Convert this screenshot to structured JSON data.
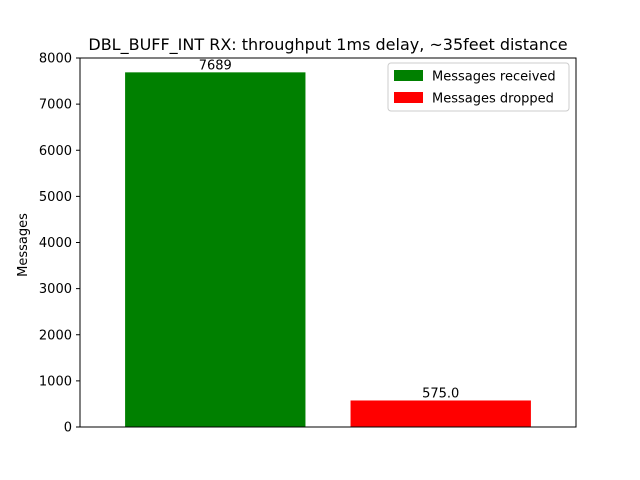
{
  "chart_data": {
    "type": "bar",
    "title": "DBL_BUFF_INT RX: throughput 1ms delay, ~35feet distance",
    "xlabel": "",
    "ylabel": "Messages",
    "ylim": [
      0,
      8000
    ],
    "yticks": [
      0,
      1000,
      2000,
      3000,
      4000,
      5000,
      6000,
      7000,
      8000
    ],
    "grid": false,
    "legend_position": "top-right",
    "bars": [
      {
        "legend": "Messages received",
        "value": 7689,
        "label": "7689",
        "color": "#008000"
      },
      {
        "legend": "Messages dropped",
        "value": 575.0,
        "label": "575.0",
        "color": "#ff0000"
      }
    ]
  }
}
